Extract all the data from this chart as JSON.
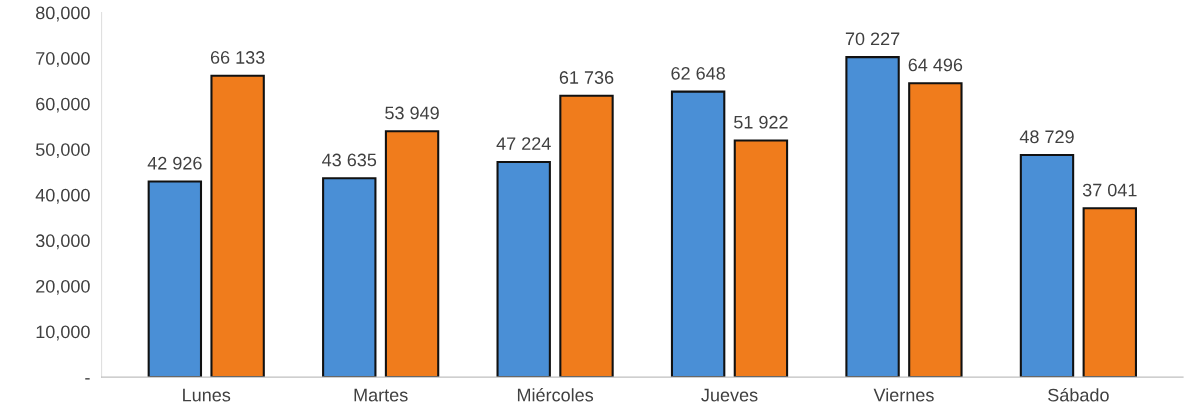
{
  "chart_data": {
    "type": "bar",
    "categories": [
      "Lunes",
      "Martes",
      "Miércoles",
      "Jueves",
      "Viernes",
      "Sábado"
    ],
    "series": [
      {
        "color": "#4a8fd6",
        "values": [
          42926,
          43635,
          47224,
          62648,
          70227,
          48729
        ],
        "value_labels": [
          "42 926",
          "43 635",
          "47 224",
          "62 648",
          "70 227",
          "48 729"
        ]
      },
      {
        "color": "#f07c1c",
        "values": [
          66133,
          53949,
          61736,
          51922,
          64496,
          37041
        ],
        "value_labels": [
          "66 133",
          "53 949",
          "61 736",
          "51 922",
          "64 496",
          "37 041"
        ]
      }
    ],
    "ylim": [
      0,
      80000
    ],
    "yticks": [
      {
        "value": 0,
        "label": "-"
      },
      {
        "value": 10000,
        "label": "10,000"
      },
      {
        "value": 20000,
        "label": "20,000"
      },
      {
        "value": 30000,
        "label": "30,000"
      },
      {
        "value": 40000,
        "label": "40,000"
      },
      {
        "value": 50000,
        "label": "50,000"
      },
      {
        "value": 60000,
        "label": "60,000"
      },
      {
        "value": 70000,
        "label": "70,000"
      },
      {
        "value": 80000,
        "label": "80,000"
      }
    ],
    "grid": false
  }
}
